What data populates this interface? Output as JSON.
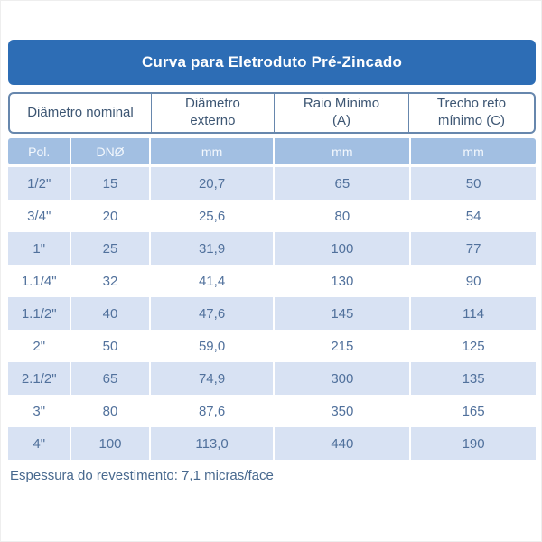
{
  "title": "Curva para Eletroduto Pré-Zincado",
  "colors": {
    "header_bar": "#2d6db5",
    "header_bar_text": "#ffffff",
    "group_header_border": "#6787ad",
    "group_header_text": "#3d5673",
    "subheader_bg": "#a2bfe2",
    "subheader_text": "#f4f8fd",
    "row_alt_bg": "#d8e2f3",
    "row_bg": "#ffffff",
    "data_text": "#51719c",
    "footnote_text": "#47688e"
  },
  "table": {
    "group_headers": [
      {
        "line1": "Diâmetro nominal",
        "line2": ""
      },
      {
        "line1": "Diâmetro",
        "line2": "externo"
      },
      {
        "line1": "Raio Mínimo",
        "line2": "(A)"
      },
      {
        "line1": "Trecho reto",
        "line2": "mínimo (C)"
      }
    ],
    "sub_headers": [
      "Pol.",
      "DNØ",
      "mm",
      "mm",
      "mm"
    ],
    "rows": [
      [
        "1/2\"",
        "15",
        "20,7",
        "65",
        "50"
      ],
      [
        "3/4\"",
        "20",
        "25,6",
        "80",
        "54"
      ],
      [
        "1\"",
        "25",
        "31,9",
        "100",
        "77"
      ],
      [
        "1.1/4\"",
        "32",
        "41,4",
        "130",
        "90"
      ],
      [
        "1.1/2\"",
        "40",
        "47,6",
        "145",
        "114"
      ],
      [
        "2\"",
        "50",
        "59,0",
        "215",
        "125"
      ],
      [
        "2.1/2\"",
        "65",
        "74,9",
        "300",
        "135"
      ],
      [
        "3\"",
        "80",
        "87,6",
        "350",
        "165"
      ],
      [
        "4\"",
        "100",
        "113,0",
        "440",
        "190"
      ]
    ],
    "footnote": "Espessura do revestimento: 7,1 micras/face"
  },
  "chart_data": {
    "type": "table",
    "title": "Curva para Eletroduto Pré-Zincado",
    "column_groups": [
      "Diâmetro nominal",
      "Diâmetro externo",
      "Raio Mínimo (A)",
      "Trecho reto mínimo (C)"
    ],
    "columns": [
      "Pol.",
      "DNØ",
      "mm",
      "mm",
      "mm"
    ],
    "rows": [
      [
        "1/2\"",
        15,
        "20,7",
        65,
        50
      ],
      [
        "3/4\"",
        20,
        "25,6",
        80,
        54
      ],
      [
        "1\"",
        25,
        "31,9",
        100,
        77
      ],
      [
        "1.1/4\"",
        32,
        "41,4",
        130,
        90
      ],
      [
        "1.1/2\"",
        40,
        "47,6",
        145,
        114
      ],
      [
        "2\"",
        50,
        "59,0",
        215,
        125
      ],
      [
        "2.1/2\"",
        65,
        "74,9",
        300,
        135
      ],
      [
        "3\"",
        80,
        "87,6",
        350,
        165
      ],
      [
        "4\"",
        100,
        "113,0",
        440,
        190
      ]
    ],
    "footnote": "Espessura do revestimento: 7,1 micras/face"
  }
}
